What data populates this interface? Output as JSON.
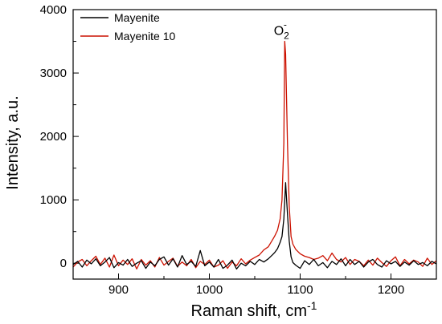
{
  "chart_data": {
    "type": "line",
    "xlabel": "Raman shift, cm",
    "xlabel_sup": "-1",
    "ylabel": "Intensity, a.u.",
    "xlim": [
      850,
      1250
    ],
    "ylim": [
      -250,
      4000
    ],
    "x_ticks": [
      900,
      1000,
      1100,
      1200
    ],
    "y_ticks": [
      0,
      1000,
      2000,
      3000,
      4000
    ],
    "legend_position": "top-left",
    "annotation": {
      "text": "O",
      "sub": "2",
      "sup": "-",
      "x": 1083,
      "y": 3550
    },
    "series": [
      {
        "name": "Mayenite",
        "color": "#000000",
        "x": [
          850,
          855,
          860,
          865,
          870,
          875,
          880,
          885,
          890,
          895,
          900,
          905,
          910,
          915,
          920,
          925,
          930,
          935,
          940,
          945,
          950,
          955,
          960,
          965,
          970,
          975,
          980,
          985,
          990,
          995,
          1000,
          1005,
          1010,
          1015,
          1020,
          1025,
          1030,
          1035,
          1040,
          1045,
          1050,
          1055,
          1060,
          1065,
          1070,
          1072,
          1075,
          1078,
          1080,
          1082,
          1084,
          1086,
          1088,
          1090,
          1092,
          1095,
          1100,
          1105,
          1110,
          1115,
          1120,
          1125,
          1130,
          1135,
          1140,
          1145,
          1150,
          1155,
          1160,
          1165,
          1170,
          1175,
          1180,
          1185,
          1190,
          1195,
          1200,
          1205,
          1210,
          1215,
          1220,
          1225,
          1230,
          1235,
          1240,
          1245,
          1250
        ],
        "y": [
          -20,
          30,
          -60,
          50,
          -10,
          70,
          -40,
          20,
          90,
          -70,
          10,
          -30,
          60,
          -50,
          0,
          40,
          -80,
          20,
          -40,
          60,
          100,
          -30,
          70,
          -60,
          120,
          -20,
          30,
          -50,
          200,
          -40,
          20,
          -60,
          60,
          -80,
          -30,
          50,
          -90,
          0,
          -40,
          30,
          -20,
          60,
          20,
          70,
          140,
          170,
          230,
          330,
          420,
          700,
          1270,
          780,
          350,
          100,
          10,
          -30,
          -80,
          40,
          -20,
          60,
          -40,
          10,
          -70,
          30,
          -20,
          70,
          -40,
          60,
          -20,
          30,
          -60,
          20,
          60,
          -20,
          -60,
          40,
          -10,
          30,
          -50,
          20,
          -30,
          40,
          -20,
          10,
          -40,
          30,
          -10
        ]
      },
      {
        "name": "Mayenite 10",
        "color": "#cc1100",
        "x": [
          850,
          855,
          860,
          865,
          870,
          875,
          880,
          885,
          890,
          895,
          900,
          905,
          910,
          915,
          920,
          925,
          930,
          935,
          940,
          945,
          950,
          955,
          960,
          965,
          970,
          975,
          980,
          985,
          990,
          995,
          1000,
          1005,
          1010,
          1015,
          1020,
          1025,
          1030,
          1035,
          1040,
          1045,
          1050,
          1055,
          1060,
          1065,
          1070,
          1072,
          1075,
          1078,
          1080,
          1082,
          1083,
          1084,
          1086,
          1088,
          1090,
          1092,
          1095,
          1100,
          1105,
          1110,
          1115,
          1120,
          1125,
          1130,
          1135,
          1140,
          1145,
          1150,
          1155,
          1160,
          1165,
          1170,
          1175,
          1180,
          1185,
          1190,
          1195,
          1200,
          1205,
          1210,
          1215,
          1220,
          1225,
          1230,
          1235,
          1240,
          1245,
          1250
        ],
        "y": [
          -60,
          20,
          60,
          -40,
          40,
          110,
          -20,
          80,
          -60,
          130,
          -40,
          50,
          -20,
          70,
          -90,
          60,
          -30,
          40,
          -60,
          90,
          -30,
          30,
          80,
          -50,
          20,
          -40,
          60,
          -70,
          30,
          -20,
          50,
          -60,
          -30,
          40,
          -80,
          20,
          -40,
          70,
          -10,
          50,
          90,
          130,
          210,
          260,
          380,
          430,
          520,
          700,
          1000,
          1900,
          3500,
          3300,
          1900,
          900,
          420,
          300,
          220,
          150,
          110,
          90,
          60,
          80,
          120,
          40,
          160,
          60,
          20,
          90,
          -20,
          60,
          30,
          -40,
          50,
          -30,
          80,
          10,
          -50,
          40,
          100,
          -40,
          60,
          -10,
          50,
          20,
          -50,
          80,
          -20,
          40
        ]
      }
    ]
  }
}
